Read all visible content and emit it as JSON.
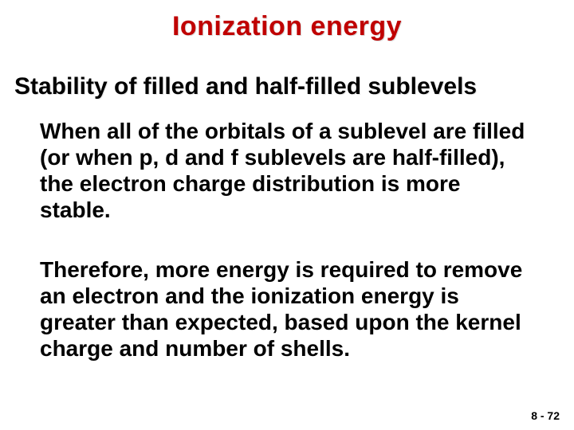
{
  "title": "Ionization energy",
  "subtitle": "Stability of filled and half-filled sublevels",
  "paragraph1": "When all of the orbitals of a sublevel are filled (or when p, d and f sublevels are half-filled), the electron charge distribution is more stable.",
  "paragraph2": "Therefore, more energy is required to remove an electron and the ionization energy is greater than expected, based upon the kernel charge and number of shells.",
  "footer": "8 - 72",
  "colors": {
    "title_color": "#c00000",
    "text_color": "#000000",
    "background": "#ffffff"
  },
  "fonts": {
    "title_size": 34,
    "subtitle_size": 30,
    "body_size": 28,
    "footer_size": 14,
    "weight": "bold"
  }
}
